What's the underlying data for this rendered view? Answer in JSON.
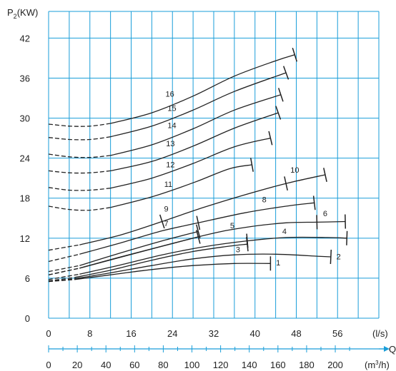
{
  "colors": {
    "grid": "#1a9ed9",
    "curve": "#222222",
    "axis": "#1a9ed9"
  },
  "chart_data": {
    "type": "line",
    "title": "",
    "ylabel": "P",
    "ylabel_sub": "2",
    "ylabel_unit": "(KW)",
    "xlabel": "Q",
    "x_unit": "(l/s)",
    "x2_unit_base": "(m",
    "x2_unit_sup": "3",
    "x2_unit_tail": "/h)",
    "xlim": [
      0,
      64
    ],
    "ylim": [
      0,
      46
    ],
    "grid": true,
    "x_ticks": [
      0,
      8,
      16,
      24,
      32,
      40,
      48,
      56
    ],
    "y_ticks": [
      0,
      6,
      12,
      18,
      24,
      30,
      36,
      42
    ],
    "x2_ticks": [
      0,
      20,
      40,
      60,
      80,
      100,
      120,
      140,
      160,
      180,
      200
    ],
    "series": [
      {
        "name": "1",
        "dashed": [
          [
            0,
            5.5
          ],
          [
            5,
            5.8
          ]
        ],
        "solid": [
          [
            5,
            5.8
          ],
          [
            12,
            6.5
          ],
          [
            20,
            7.3
          ],
          [
            28,
            7.9
          ],
          [
            36,
            8.2
          ],
          [
            43,
            8.2
          ]
        ],
        "label_at": [
          44.5,
          7.9
        ],
        "ticks": []
      },
      {
        "name": "2",
        "dashed": [
          [
            0,
            5.5
          ],
          [
            5,
            5.9
          ]
        ],
        "solid": [
          [
            5,
            5.9
          ],
          [
            12,
            6.8
          ],
          [
            20,
            7.9
          ],
          [
            28,
            8.9
          ],
          [
            36,
            9.5
          ],
          [
            44,
            9.6
          ],
          [
            52,
            9.3
          ],
          [
            54.7,
            9.2
          ]
        ],
        "label_at": [
          56.2,
          8.8
        ],
        "ticks": []
      },
      {
        "name": "3",
        "dashed": [
          [
            0,
            5.6
          ],
          [
            5,
            6.1
          ]
        ],
        "solid": [
          [
            5,
            6.1
          ],
          [
            12,
            7.2
          ],
          [
            20,
            8.7
          ],
          [
            28,
            10.0
          ],
          [
            35,
            10.8
          ],
          [
            38.5,
            11.1
          ]
        ],
        "label_at": [
          36.7,
          9.9
        ],
        "ticks": []
      },
      {
        "name": "4",
        "dashed": [
          [
            0,
            5.8
          ],
          [
            6,
            6.6
          ]
        ],
        "solid": [
          [
            6,
            6.6
          ],
          [
            14,
            8.0
          ],
          [
            22,
            9.5
          ],
          [
            30,
            10.7
          ],
          [
            38.5,
            11.6
          ],
          [
            46,
            12.1
          ],
          [
            54,
            12.1
          ],
          [
            57.8,
            12.0
          ]
        ],
        "label_at": [
          45.7,
          12.6
        ],
        "ticks": [
          38.5
        ]
      },
      {
        "name": "5",
        "dashed": [
          [
            0,
            6.5
          ],
          [
            6,
            7.5
          ]
        ],
        "solid": [
          [
            6,
            7.5
          ],
          [
            14,
            9.2
          ],
          [
            22,
            10.8
          ],
          [
            29,
            12.2
          ]
        ],
        "label_at": [
          35.6,
          13.5
        ],
        "ticks": []
      },
      {
        "name": "6",
        "dashed": [
          [
            0,
            6.5
          ],
          [
            6,
            7.5
          ]
        ],
        "solid": [
          [
            6,
            7.5
          ],
          [
            29,
            12.2
          ],
          [
            38,
            13.6
          ],
          [
            46,
            14.3
          ],
          [
            52,
            14.4
          ],
          [
            57.5,
            14.5
          ]
        ],
        "label_at": [
          53.6,
          15.3
        ],
        "ticks": [
          52
        ]
      },
      {
        "name": "7",
        "dashed": [
          [
            0,
            7.0
          ],
          [
            6,
            7.9
          ]
        ],
        "solid": [
          [
            6,
            7.9
          ],
          [
            14,
            9.8
          ],
          [
            22,
            11.6
          ],
          [
            29,
            13.0
          ]
        ],
        "label_at": [
          22.8,
          13.8
        ],
        "ticks": []
      },
      {
        "name": "8",
        "dashed": [
          [
            0,
            8.5
          ],
          [
            6,
            9.6
          ]
        ],
        "solid": [
          [
            6,
            9.6
          ],
          [
            14,
            11.3
          ],
          [
            22,
            13.1
          ],
          [
            29,
            14.3
          ],
          [
            38,
            15.8
          ],
          [
            46,
            16.8
          ],
          [
            51.5,
            17.3
          ]
        ],
        "label_at": [
          41.8,
          17.4
        ],
        "ticks": [
          29
        ]
      },
      {
        "name": "9",
        "dashed": [
          [
            0,
            10.2
          ],
          [
            6,
            11.0
          ]
        ],
        "solid": [
          [
            6,
            11.0
          ],
          [
            14,
            12.5
          ],
          [
            22,
            14.5
          ]
        ],
        "label_at": [
          22.8,
          16.0
        ],
        "ticks": []
      },
      {
        "name": "10",
        "dashed": [],
        "solid": [
          [
            22,
            14.5
          ],
          [
            30,
            16.6
          ],
          [
            38,
            18.5
          ],
          [
            46,
            20.2
          ],
          [
            53.6,
            21.5
          ]
        ],
        "label_at": [
          47.7,
          21.8
        ],
        "ticks": [
          46
        ]
      },
      {
        "name": "11",
        "dashed": [
          [
            0,
            16.8
          ],
          [
            4,
            16.3
          ],
          [
            8,
            16.2
          ],
          [
            12,
            16.6
          ]
        ],
        "solid": [
          [
            12,
            16.6
          ],
          [
            20,
            18.2
          ],
          [
            28,
            20.3
          ],
          [
            35,
            22.4
          ],
          [
            39.4,
            23.0
          ]
        ],
        "label_at": [
          23.2,
          19.7
        ],
        "ticks": []
      },
      {
        "name": "12",
        "dashed": [
          [
            0,
            19.6
          ],
          [
            4,
            19.2
          ],
          [
            8,
            19.2
          ],
          [
            12,
            19.5
          ]
        ],
        "solid": [
          [
            12,
            19.5
          ],
          [
            20,
            21.0
          ],
          [
            28,
            23.2
          ],
          [
            36,
            25.7
          ],
          [
            43,
            27.0
          ]
        ],
        "label_at": [
          23.6,
          22.6
        ],
        "ticks": []
      },
      {
        "name": "13",
        "dashed": [
          [
            0,
            22.1
          ],
          [
            4,
            21.8
          ],
          [
            8,
            21.8
          ],
          [
            12,
            22.1
          ]
        ],
        "solid": [
          [
            12,
            22.1
          ],
          [
            20,
            23.5
          ],
          [
            28,
            25.8
          ],
          [
            36,
            28.5
          ],
          [
            44.5,
            30.8
          ]
        ],
        "label_at": [
          23.6,
          25.8
        ],
        "ticks": []
      },
      {
        "name": "14",
        "dashed": [
          [
            0,
            24.6
          ],
          [
            4,
            24.2
          ],
          [
            8,
            24.1
          ],
          [
            12,
            24.4
          ]
        ],
        "solid": [
          [
            12,
            24.4
          ],
          [
            20,
            26.0
          ],
          [
            28,
            28.4
          ],
          [
            36,
            31.2
          ],
          [
            45,
            33.5
          ]
        ],
        "label_at": [
          23.9,
          28.5
        ],
        "ticks": []
      },
      {
        "name": "15",
        "dashed": [
          [
            0,
            27.1
          ],
          [
            4,
            26.8
          ],
          [
            8,
            26.8
          ],
          [
            12,
            27.2
          ]
        ],
        "solid": [
          [
            12,
            27.2
          ],
          [
            20,
            28.8
          ],
          [
            28,
            31.2
          ],
          [
            36,
            34.0
          ],
          [
            46,
            36.8
          ]
        ],
        "label_at": [
          23.9,
          31.1
        ],
        "ticks": []
      },
      {
        "name": "16",
        "dashed": [
          [
            0,
            29.1
          ],
          [
            4,
            28.8
          ],
          [
            8,
            28.8
          ],
          [
            12,
            29.2
          ]
        ],
        "solid": [
          [
            12,
            29.2
          ],
          [
            20,
            30.8
          ],
          [
            28,
            33.3
          ],
          [
            36,
            36.3
          ],
          [
            44,
            38.6
          ],
          [
            47.7,
            39.5
          ]
        ],
        "label_at": [
          23.5,
          33.2
        ],
        "ticks": []
      }
    ]
  }
}
